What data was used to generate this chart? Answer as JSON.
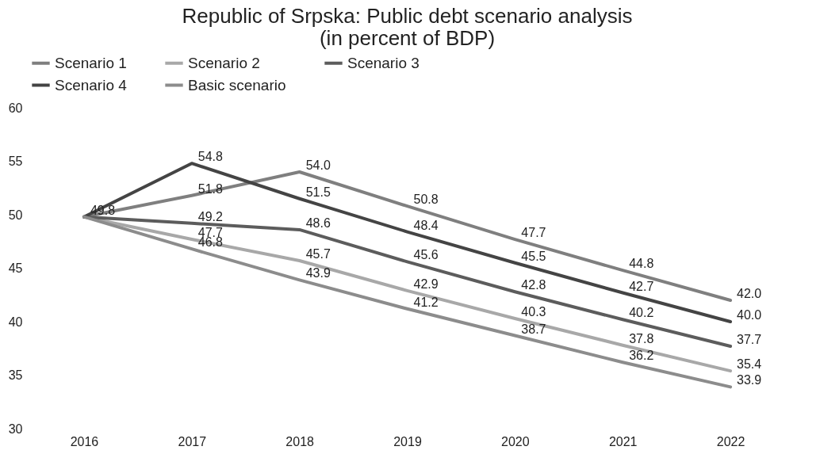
{
  "chart_data": {
    "type": "line",
    "title": [
      "Republic of Srpska: Public debt scenario analysis",
      "(in percent of BDP)"
    ],
    "categories": [
      "2016",
      "2017",
      "2018",
      "2019",
      "2020",
      "2021",
      "2022"
    ],
    "series": [
      {
        "name": "Scenario 1",
        "color": "#7f7f7f",
        "values": [
          49.8,
          51.8,
          54.0,
          50.8,
          47.7,
          44.8,
          42.0
        ],
        "value_labels": [
          null,
          "51.8",
          "54.0",
          "50.8",
          "47.7",
          "44.8",
          "42.0"
        ]
      },
      {
        "name": "Scenario 2",
        "color": "#a8a8a8",
        "values": [
          49.8,
          47.7,
          45.7,
          42.9,
          40.3,
          37.8,
          35.4
        ],
        "value_labels": [
          null,
          "47.7",
          "45.7",
          "42.9",
          "40.3",
          "37.8",
          "35.4"
        ]
      },
      {
        "name": "Scenario 3",
        "color": "#5c5c5c",
        "values": [
          49.8,
          49.2,
          48.6,
          45.6,
          42.8,
          40.2,
          37.7
        ],
        "value_labels": [
          "49.8",
          "49.2",
          "48.6",
          "45.6",
          "42.8",
          "40.2",
          "37.7"
        ]
      },
      {
        "name": "Scenario 4",
        "color": "#444444",
        "values": [
          49.8,
          54.8,
          51.5,
          48.4,
          45.5,
          42.7,
          40.0
        ],
        "value_labels": [
          null,
          "54.8",
          "51.5",
          "48.4",
          "45.5",
          "42.7",
          "40.0"
        ]
      },
      {
        "name": "Basic scenario",
        "color": "#8c8c8c",
        "values": [
          49.8,
          46.8,
          43.9,
          41.2,
          38.7,
          36.2,
          33.9
        ],
        "value_labels": [
          null,
          "46.8",
          "43.9",
          "41.2",
          "38.7",
          "36.2",
          "33.9"
        ]
      }
    ],
    "ylim": [
      30,
      60
    ],
    "yticks": [
      30,
      35,
      40,
      45,
      50,
      55,
      60
    ],
    "grid": false,
    "legend": "top",
    "line_style": "solid",
    "marker": "none"
  }
}
